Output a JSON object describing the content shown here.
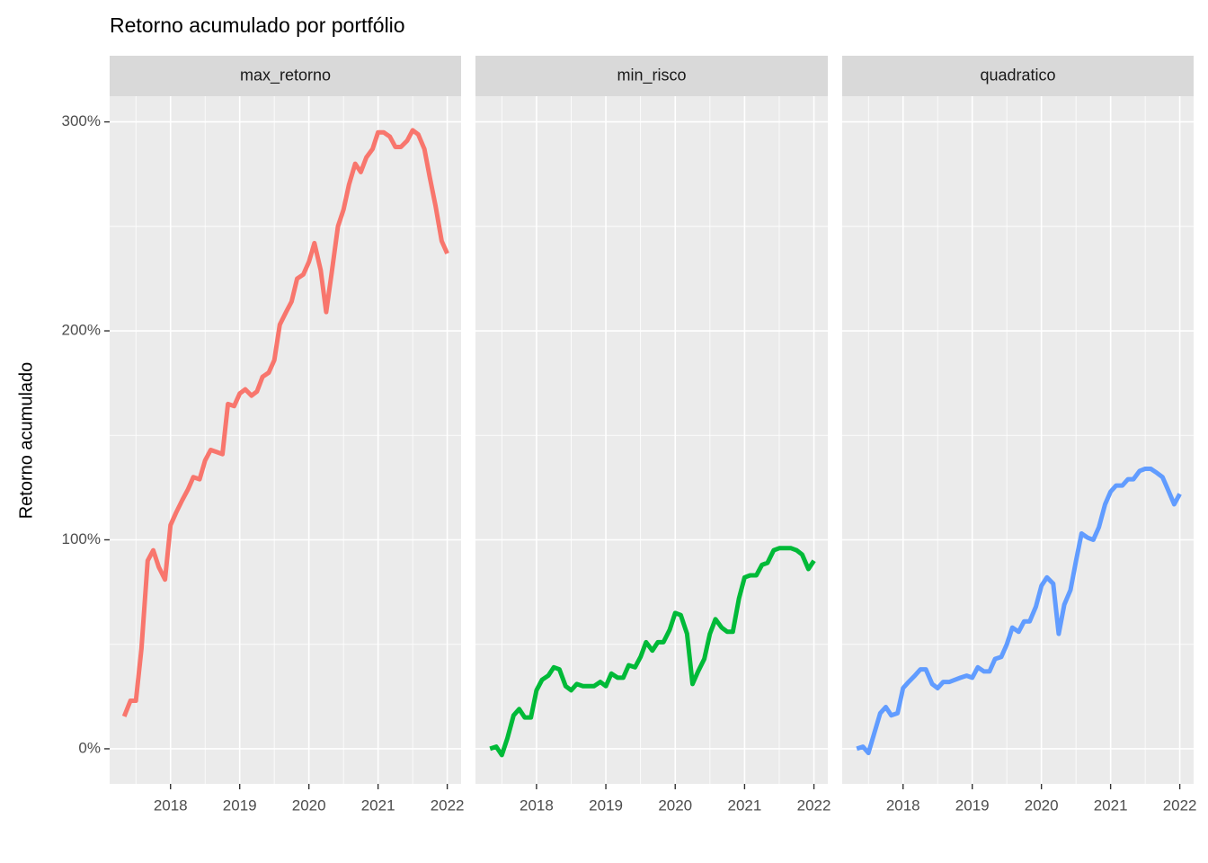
{
  "chart_data": {
    "type": "line",
    "title": "Retorno acumulado por portfólio",
    "ylabel": "Retorno acumulado",
    "facets": true,
    "grid": {
      "major": true,
      "minor": true
    },
    "x": [
      2017.33,
      2017.42,
      2017.5,
      2017.58,
      2017.67,
      2017.75,
      2017.83,
      2017.92,
      2018,
      2018.08,
      2018.17,
      2018.25,
      2018.33,
      2018.42,
      2018.5,
      2018.58,
      2018.67,
      2018.75,
      2018.83,
      2018.92,
      2019,
      2019.08,
      2019.17,
      2019.25,
      2019.33,
      2019.42,
      2019.5,
      2019.58,
      2019.67,
      2019.75,
      2019.83,
      2019.92,
      2020,
      2020.08,
      2020.17,
      2020.25,
      2020.33,
      2020.42,
      2020.5,
      2020.58,
      2020.67,
      2020.75,
      2020.83,
      2020.92,
      2021,
      2021.08,
      2021.17,
      2021.25,
      2021.33,
      2021.42,
      2021.5,
      2021.58,
      2021.67,
      2021.75,
      2021.83,
      2021.92,
      2022
    ],
    "xlim": [
      2017.12,
      2022.2
    ],
    "xticks": [
      2018,
      2019,
      2020,
      2021,
      2022
    ],
    "ylim": [
      -16.8,
      312.3
    ],
    "yticks": [
      {
        "value": 0,
        "label": "0%"
      },
      {
        "value": 100,
        "label": "100%"
      },
      {
        "value": 200,
        "label": "200%"
      },
      {
        "value": 300,
        "label": "300%"
      }
    ],
    "series": [
      {
        "name": "max_retorno",
        "color": "#F8766D",
        "values": [
          15.5,
          23,
          23,
          48,
          90,
          95,
          87,
          81,
          107,
          113,
          119,
          124,
          130,
          129,
          138,
          143,
          142,
          141,
          165,
          164,
          170,
          172,
          169,
          171,
          178,
          180,
          186,
          203,
          209,
          214,
          225,
          227,
          233,
          242,
          229,
          209,
          228,
          250,
          258,
          270,
          280,
          276,
          283,
          287,
          295,
          295,
          293,
          288,
          288,
          291,
          296,
          294,
          287,
          273,
          260,
          243,
          237
        ]
      },
      {
        "name": "min_risco",
        "color": "#00BA38",
        "values": [
          0,
          1,
          -3,
          5,
          16,
          19,
          15,
          15,
          28,
          33,
          35,
          39,
          38,
          30,
          28,
          31,
          30,
          30,
          30,
          32,
          30,
          36,
          34,
          34,
          40,
          39,
          44,
          51,
          47,
          51,
          51,
          57,
          65,
          64,
          55,
          31,
          37,
          43,
          55,
          62,
          58,
          56,
          56,
          72,
          82,
          83,
          83,
          88,
          89,
          95,
          96,
          96,
          96,
          95,
          93,
          86,
          90
        ]
      },
      {
        "name": "quadratico",
        "color": "#619CFF",
        "values": [
          0,
          1,
          -2,
          7,
          17,
          20,
          16,
          17,
          29,
          32,
          35,
          38,
          38,
          31,
          29,
          32,
          32,
          33,
          34,
          35,
          34,
          39,
          37,
          37,
          43,
          44,
          50,
          58,
          56,
          61,
          61,
          68,
          78,
          82,
          79,
          55,
          69,
          76,
          90,
          103,
          101,
          100,
          106,
          117,
          123,
          126,
          126,
          129,
          129,
          133,
          134,
          134,
          132,
          130,
          124,
          117,
          122
        ]
      }
    ]
  }
}
